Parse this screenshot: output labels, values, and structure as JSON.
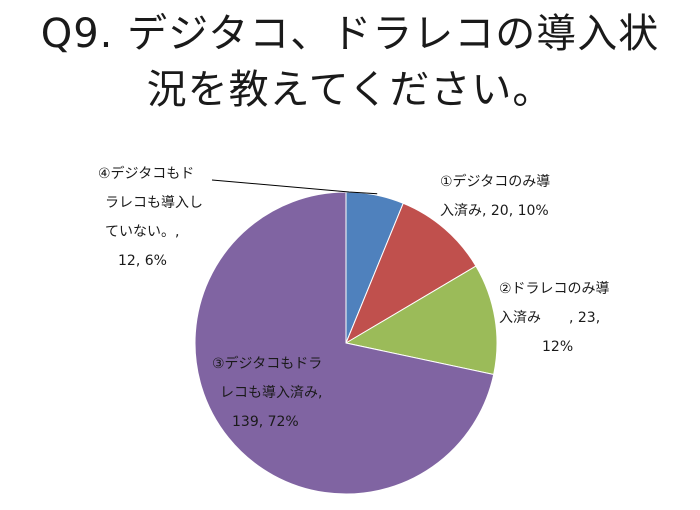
{
  "title_lines": [
    "Q9. デジタコ、ドラレコの導入状",
    "況を教えてください。"
  ],
  "chart_data": {
    "type": "pie",
    "title": "Q9. デジタコ、ドラレコの導入状況を教えてください。",
    "legend": "none",
    "slices": [
      {
        "label": "④デジタコもドラレコも導入していない。",
        "value": 12,
        "percent": 6,
        "color": "#4f81bd",
        "label_lines": [
          "④デジタコもド",
          "ラレコも導入し",
          "ていない。,",
          "12, 6%"
        ]
      },
      {
        "label": "①デジタコのみ導入済み",
        "value": 20,
        "percent": 10,
        "color": "#c0504d",
        "label_lines": [
          "①デジタコのみ導",
          "入済み, 20, 10%"
        ]
      },
      {
        "label": "②ドラレコのみ導入済み",
        "value": 23,
        "percent": 12,
        "color": "#9bbb59",
        "label_lines": [
          "②ドラレコのみ導",
          "入済み　　, 23,",
          "12%"
        ]
      },
      {
        "label": "③デジタコもドラレコも導入済み",
        "value": 139,
        "percent": 72,
        "color": "#8064a2",
        "label_lines": [
          "③デジタコもドラ",
          "レコも導入済み,",
          "139, 72%"
        ]
      }
    ]
  }
}
